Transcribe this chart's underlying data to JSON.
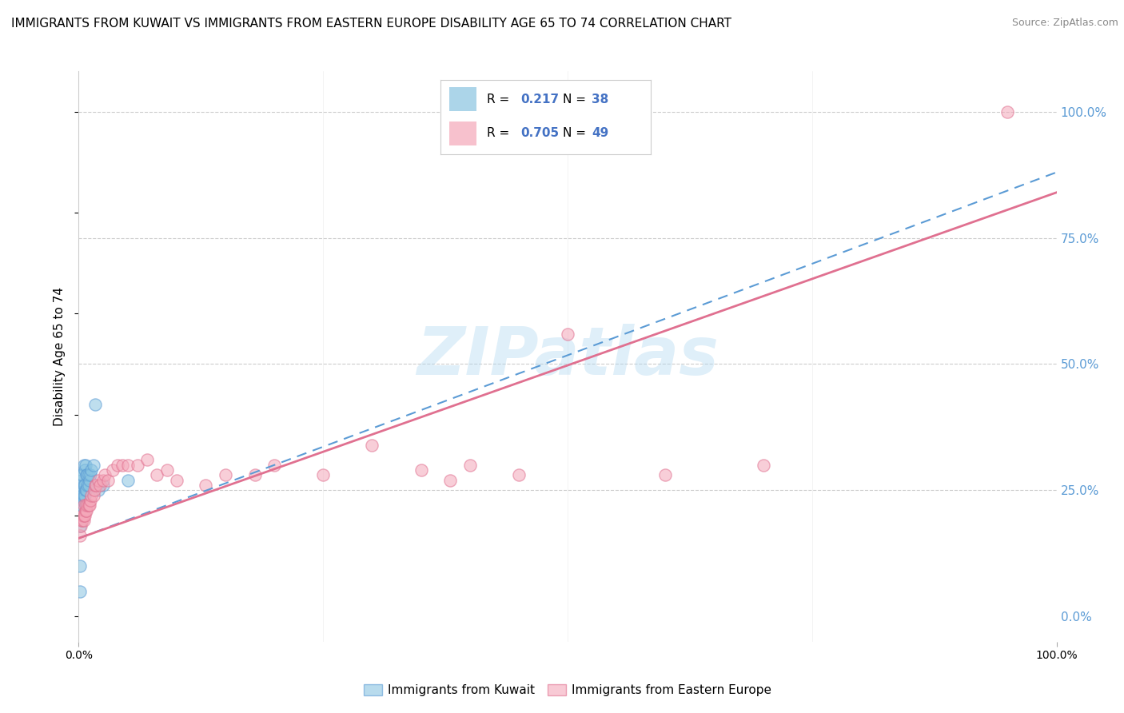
{
  "title": "IMMIGRANTS FROM KUWAIT VS IMMIGRANTS FROM EASTERN EUROPE DISABILITY AGE 65 TO 74 CORRELATION CHART",
  "source": "Source: ZipAtlas.com",
  "ylabel": "Disability Age 65 to 74",
  "right_yticks": [
    0.0,
    0.25,
    0.5,
    0.75,
    1.0
  ],
  "right_yticklabels": [
    "0.0%",
    "25.0%",
    "50.0%",
    "75.0%",
    "100.0%"
  ],
  "legend_blue_R": "0.217",
  "legend_blue_N": "38",
  "legend_pink_R": "0.705",
  "legend_pink_N": "49",
  "blue_color": "#89c4e1",
  "pink_color": "#f4a7b9",
  "blue_line_color": "#5b9bd5",
  "pink_line_color": "#e07090",
  "legend_text_color": "#4472c4",
  "right_tick_color": "#5b9bd5",
  "watermark": "ZIPatlas",
  "watermark_color": "#b0d8f0",
  "blue_scatter_x": [
    0.001,
    0.001,
    0.001,
    0.002,
    0.002,
    0.002,
    0.002,
    0.002,
    0.003,
    0.003,
    0.003,
    0.003,
    0.004,
    0.004,
    0.004,
    0.005,
    0.005,
    0.005,
    0.005,
    0.006,
    0.006,
    0.006,
    0.007,
    0.007,
    0.008,
    0.008,
    0.009,
    0.009,
    0.01,
    0.01,
    0.011,
    0.012,
    0.013,
    0.015,
    0.017,
    0.02,
    0.025,
    0.05
  ],
  "blue_scatter_y": [
    0.05,
    0.1,
    0.18,
    0.22,
    0.24,
    0.25,
    0.26,
    0.28,
    0.22,
    0.24,
    0.25,
    0.27,
    0.23,
    0.24,
    0.28,
    0.23,
    0.24,
    0.26,
    0.3,
    0.24,
    0.26,
    0.29,
    0.25,
    0.3,
    0.25,
    0.28,
    0.26,
    0.28,
    0.26,
    0.28,
    0.27,
    0.28,
    0.29,
    0.3,
    0.42,
    0.25,
    0.26,
    0.27
  ],
  "pink_scatter_x": [
    0.001,
    0.002,
    0.003,
    0.004,
    0.004,
    0.005,
    0.005,
    0.005,
    0.006,
    0.007,
    0.007,
    0.008,
    0.009,
    0.01,
    0.011,
    0.012,
    0.013,
    0.015,
    0.016,
    0.017,
    0.018,
    0.02,
    0.022,
    0.025,
    0.027,
    0.03,
    0.035,
    0.04,
    0.045,
    0.05,
    0.06,
    0.07,
    0.08,
    0.09,
    0.1,
    0.13,
    0.15,
    0.18,
    0.2,
    0.25,
    0.3,
    0.35,
    0.38,
    0.4,
    0.45,
    0.5,
    0.6,
    0.7,
    0.95
  ],
  "pink_scatter_y": [
    0.16,
    0.18,
    0.19,
    0.19,
    0.2,
    0.19,
    0.2,
    0.22,
    0.2,
    0.21,
    0.22,
    0.21,
    0.22,
    0.22,
    0.22,
    0.23,
    0.24,
    0.24,
    0.25,
    0.26,
    0.26,
    0.27,
    0.26,
    0.27,
    0.28,
    0.27,
    0.29,
    0.3,
    0.3,
    0.3,
    0.3,
    0.31,
    0.28,
    0.29,
    0.27,
    0.26,
    0.28,
    0.28,
    0.3,
    0.28,
    0.34,
    0.29,
    0.27,
    0.3,
    0.28,
    0.56,
    0.28,
    0.3,
    1.0
  ],
  "blue_trend": [
    0.155,
    0.88
  ],
  "pink_trend": [
    0.155,
    0.84
  ],
  "xlim": [
    0.0,
    1.0
  ],
  "ylim": [
    -0.05,
    1.08
  ],
  "plot_ylim": [
    -0.05,
    1.08
  ],
  "bg_color": "#ffffff",
  "grid_color": "#cccccc"
}
